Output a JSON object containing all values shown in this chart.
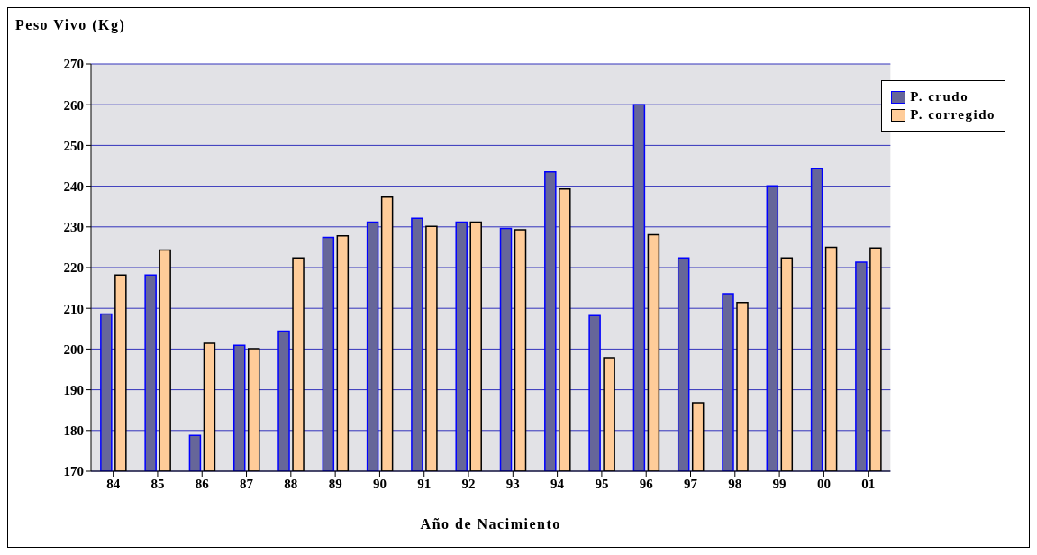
{
  "chart_data": {
    "type": "bar",
    "ylabel": "Peso Vivo (Kg)",
    "xlabel": "Año de Nacimiento",
    "categories": [
      "84",
      "85",
      "86",
      "87",
      "88",
      "89",
      "90",
      "91",
      "92",
      "93",
      "94",
      "95",
      "96",
      "97",
      "98",
      "99",
      "00",
      "01"
    ],
    "series": [
      {
        "name": "P. crudo",
        "color": "#666699",
        "values": [
          208.6,
          218.2,
          178.8,
          200.9,
          204.4,
          227.4,
          231.2,
          232.1,
          231.2,
          229.6,
          243.5,
          208.2,
          260.0,
          222.4,
          213.6,
          240.1,
          244.3,
          221.3
        ]
      },
      {
        "name": "P. corregido",
        "color": "#ffcc99",
        "values": [
          218.2,
          224.3,
          201.4,
          200.1,
          222.4,
          227.8,
          237.3,
          230.1,
          231.2,
          229.3,
          239.3,
          197.9,
          228.1,
          186.8,
          211.4,
          222.4,
          225.0,
          224.8
        ]
      }
    ],
    "ylim": [
      170,
      270
    ],
    "yticks": [
      170,
      180,
      190,
      200,
      210,
      220,
      230,
      240,
      250,
      260,
      270
    ],
    "grid": "y",
    "legend": "top right"
  }
}
